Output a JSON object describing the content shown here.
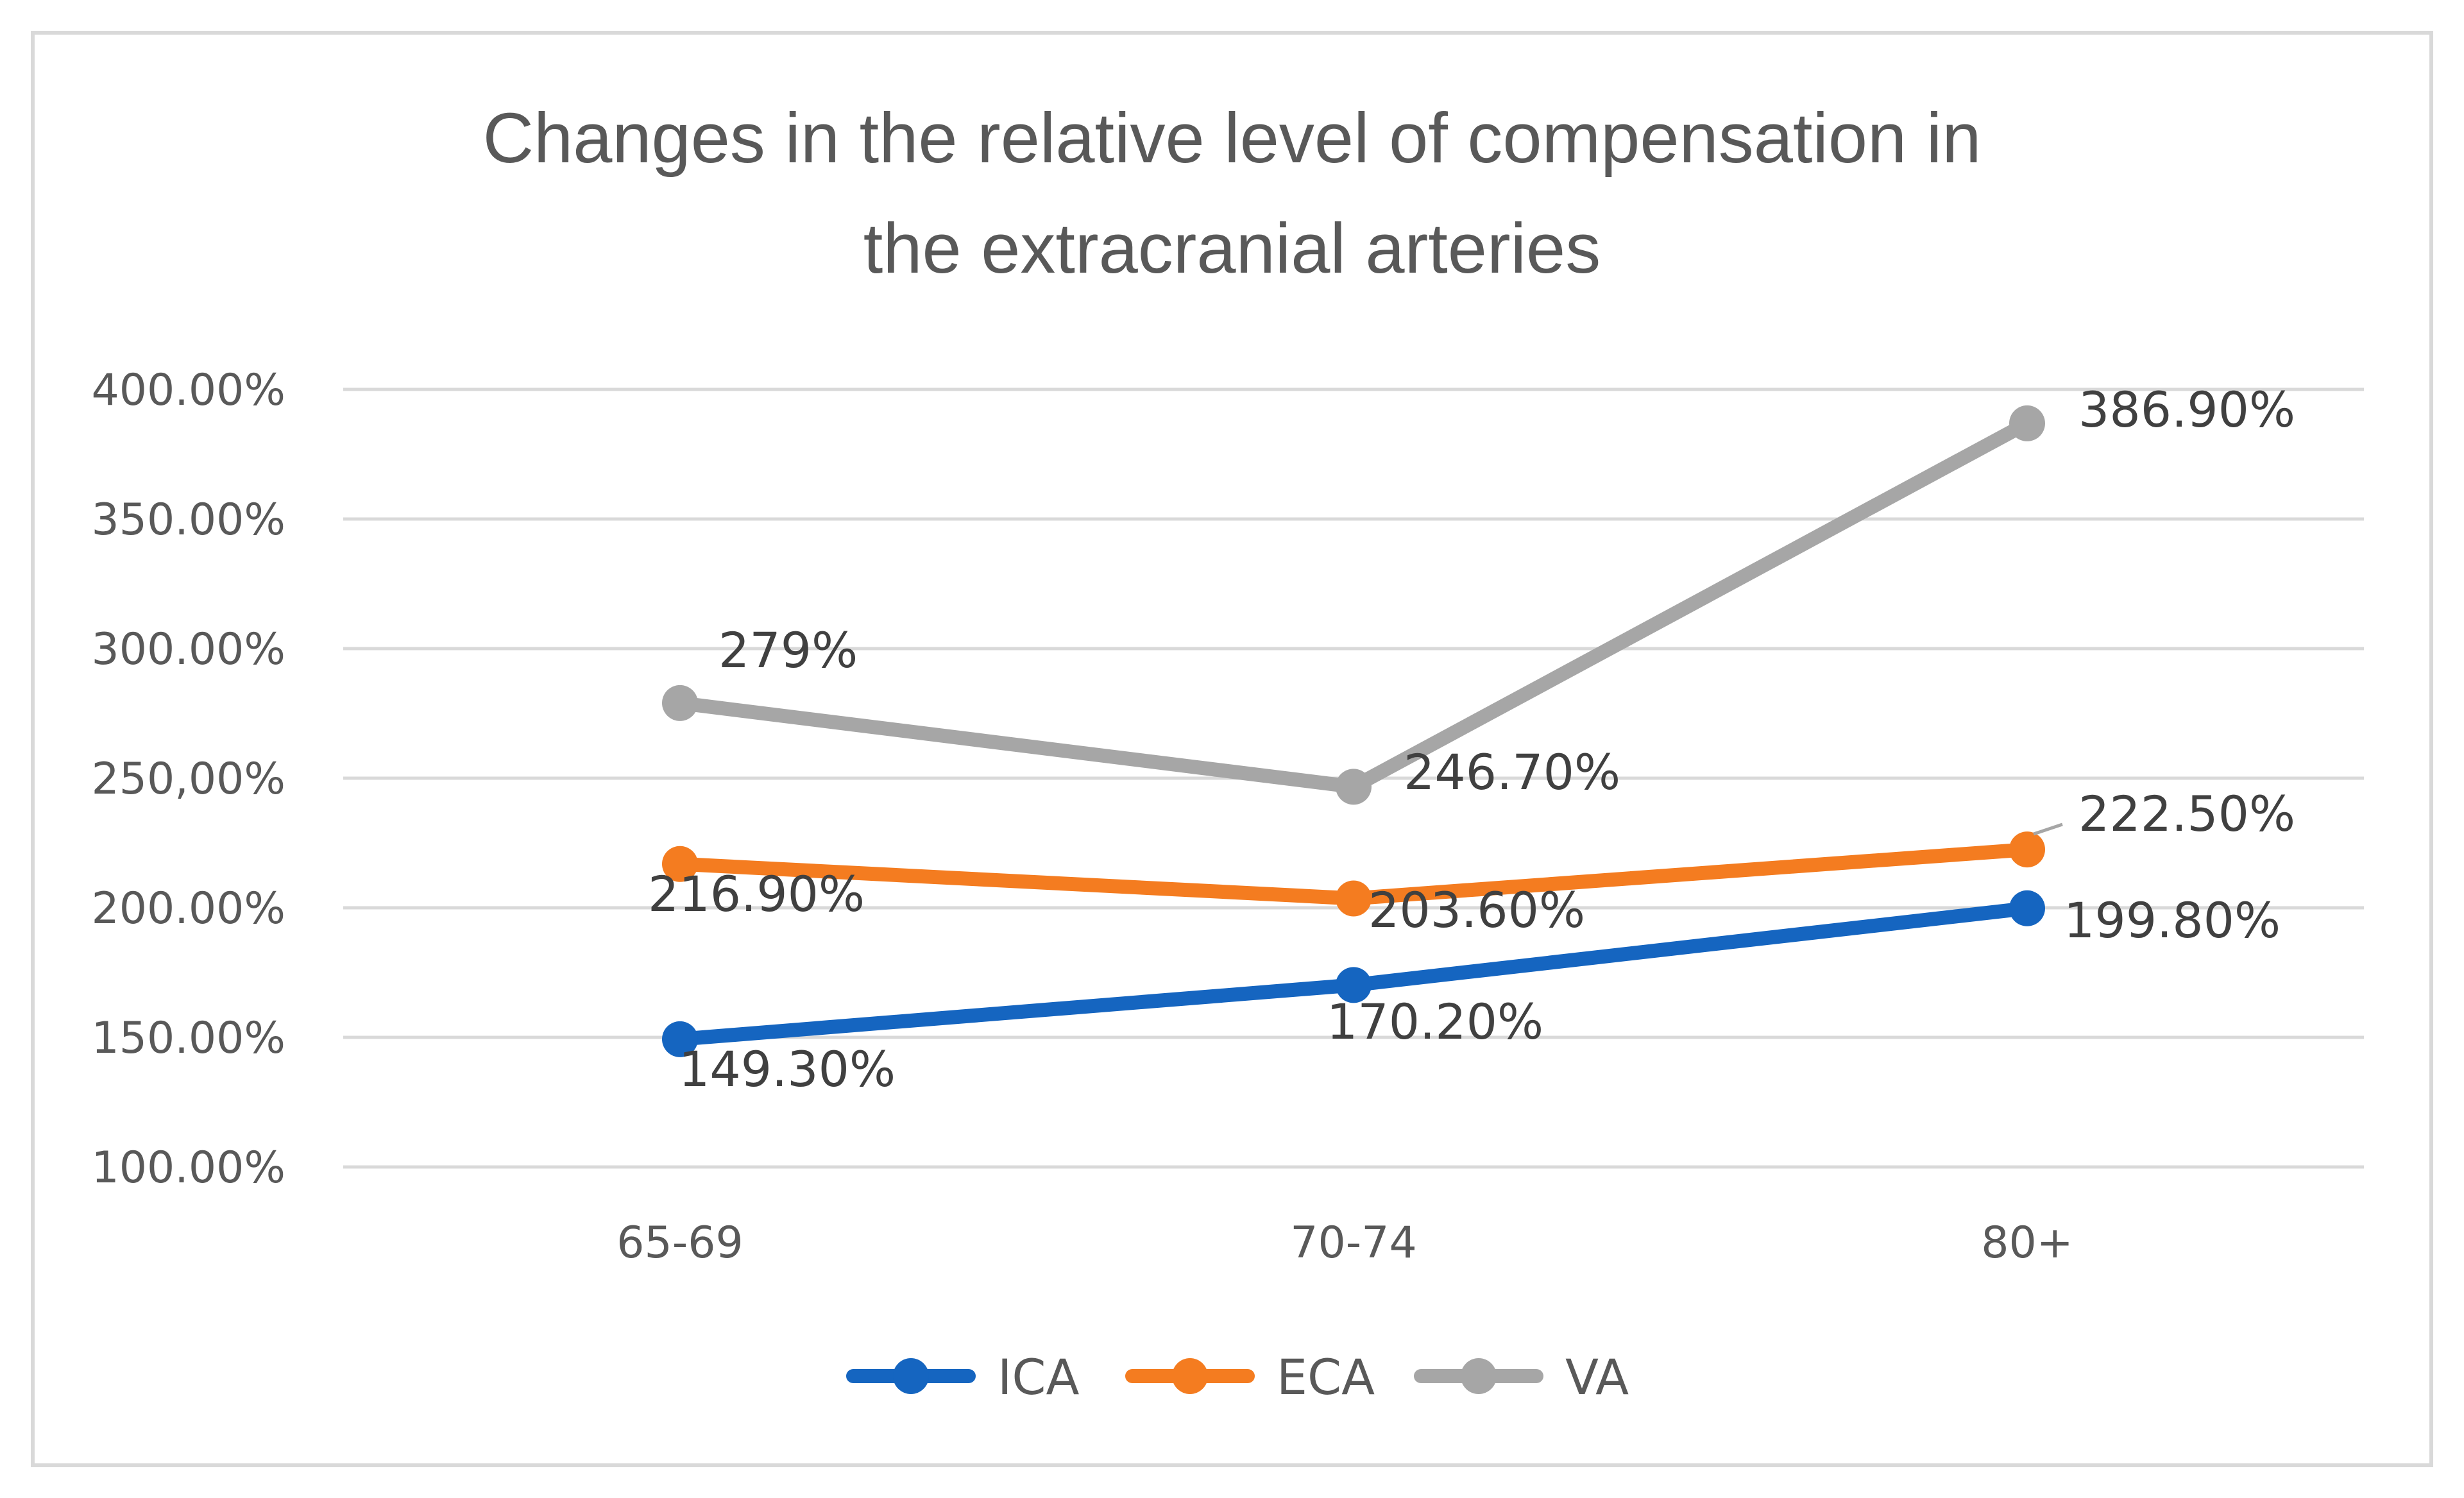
{
  "chart_data": {
    "type": "line",
    "title_lines": [
      "Changes in the relative level of compensation in",
      "the extracranial arteries"
    ],
    "categories": [
      "65-69",
      "70-74",
      "80+"
    ],
    "ylim": [
      100,
      400
    ],
    "ytick_values": [
      100,
      150,
      200,
      250,
      300,
      350,
      400
    ],
    "ytick_labels": [
      "100.00%",
      "150.00%",
      "200.00%",
      "250,00%",
      "300.00%",
      "350.00%",
      "400.00%"
    ],
    "grid": true,
    "legend_position": "bottom",
    "series": [
      {
        "name": "ICA",
        "color": "#1565C0",
        "values": [
          149.3,
          170.2,
          199.8
        ],
        "labels": [
          "149.30%",
          "170.20%",
          "199.80%"
        ]
      },
      {
        "name": "ECA",
        "color": "#F47C20",
        "values": [
          216.9,
          203.6,
          222.5
        ],
        "labels": [
          "216.90%",
          "203.60%",
          "222.50%"
        ]
      },
      {
        "name": "VA",
        "color": "#A6A6A6",
        "values": [
          279,
          246.7,
          386.9
        ],
        "labels": [
          "279%",
          "246.70%",
          "386.90%"
        ]
      }
    ]
  }
}
